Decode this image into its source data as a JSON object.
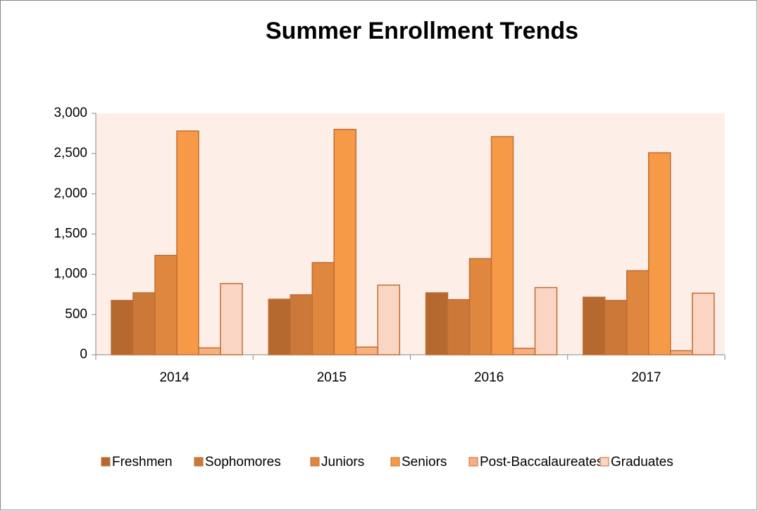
{
  "chart_data": {
    "type": "bar",
    "title": "Summer Enrollment Trends",
    "categories": [
      "2014",
      "2015",
      "2016",
      "2017"
    ],
    "series": [
      {
        "name": "Freshmen",
        "color": "#b5692f",
        "values": [
          675,
          690,
          770,
          715
        ]
      },
      {
        "name": "Sophomores",
        "color": "#cc7838",
        "values": [
          770,
          745,
          685,
          675
        ]
      },
      {
        "name": "Juniors",
        "color": "#e0873f",
        "values": [
          1235,
          1145,
          1195,
          1045
        ]
      },
      {
        "name": "Seniors",
        "color": "#f79a47",
        "values": [
          2780,
          2800,
          2710,
          2510
        ]
      },
      {
        "name": "Post-Baccalaureates",
        "color": "#f8b080",
        "values": [
          85,
          95,
          80,
          50
        ]
      },
      {
        "name": "Graduates",
        "color": "#fbd5c3",
        "values": [
          885,
          865,
          835,
          765
        ]
      }
    ],
    "ylim": [
      0,
      3000
    ],
    "yticks": [
      0,
      500,
      {
        "value": 1000,
        "label": "1,000"
      },
      {
        "value": 1500,
        "label": "1,500"
      },
      {
        "value": 2000,
        "label": "2,000"
      },
      {
        "value": 2500,
        "label": "2,500"
      },
      {
        "value": 3000,
        "label": "3,000"
      }
    ],
    "legend": "bottom"
  }
}
